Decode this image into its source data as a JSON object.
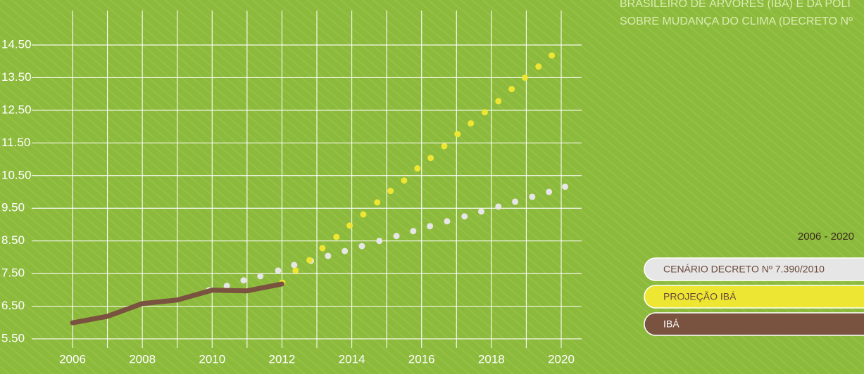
{
  "chart_data": {
    "type": "line",
    "heading_lines": [
      "BRASILEIRO DE ÁRVORES (IBÁ) E DA POLÍ",
      "SOBRE MUDANÇA DO CLIMA (DECRETO Nº"
    ],
    "legend_title": "2006 - 2020",
    "legend": "right",
    "grid": true,
    "xlim": [
      2006,
      2020
    ],
    "xticks": [
      2006,
      2008,
      2010,
      2012,
      2014,
      2016,
      2018,
      2020
    ],
    "xminorticks": [
      2007,
      2009,
      2011,
      2013,
      2015,
      2017,
      2019
    ],
    "ylim": [
      5.5,
      14.5
    ],
    "yticks": [
      {
        "value": 5.5,
        "label": "5.50"
      },
      {
        "value": 6.5,
        "label": "6.50"
      },
      {
        "value": 7.5,
        "label": "7.50"
      },
      {
        "value": 8.5,
        "label": "8.50"
      },
      {
        "value": 9.5,
        "label": "9.50"
      },
      {
        "value": 10.5,
        "label": "10.50"
      },
      {
        "value": 11.5,
        "label": "11.50"
      },
      {
        "value": 12.5,
        "label": "12.50"
      },
      {
        "value": 13.5,
        "label": "13.50"
      },
      {
        "value": 14.5,
        "label": "14.50"
      }
    ],
    "series": [
      {
        "name": "CENÁRIO DECRETO Nº 7.390/2010",
        "color": "#e6e6e6",
        "text_color": "#6b4a3c",
        "mode": "dots",
        "x": [
          2009.91,
          2010.42,
          2010.9,
          2011.38,
          2011.89,
          2012.35,
          2012.83,
          2013.32,
          2013.8,
          2014.29,
          2014.79,
          2015.28,
          2015.76,
          2016.24,
          2016.73,
          2017.23,
          2017.71,
          2018.2,
          2018.68,
          2019.17,
          2019.65,
          2020.11
        ],
        "values": [
          6.99,
          7.12,
          7.29,
          7.42,
          7.59,
          7.76,
          7.89,
          8.04,
          8.19,
          8.34,
          8.5,
          8.65,
          8.8,
          8.95,
          9.1,
          9.25,
          9.4,
          9.55,
          9.7,
          9.85,
          10.0,
          10.16
        ]
      },
      {
        "name": "PROJEÇÃO IBÁ",
        "color": "#ede632",
        "text_color": "#6b4a3c",
        "mode": "dots",
        "x": [
          2012.01,
          2012.39,
          2012.79,
          2013.16,
          2013.56,
          2013.94,
          2014.33,
          2014.73,
          2015.11,
          2015.5,
          2015.88,
          2016.26,
          2016.65,
          2017.03,
          2017.41,
          2017.81,
          2018.2,
          2018.58,
          2018.96,
          2019.35,
          2019.73
        ],
        "values": [
          7.22,
          7.59,
          7.91,
          8.28,
          8.62,
          8.97,
          9.31,
          9.68,
          10.03,
          10.35,
          10.72,
          11.04,
          11.4,
          11.77,
          12.1,
          12.44,
          12.78,
          13.15,
          13.5,
          13.84,
          14.18
        ]
      },
      {
        "name": "IBÁ",
        "color": "#7a5240",
        "text_color": "#ffffff",
        "mode": "line",
        "x": [
          2006,
          2007,
          2008,
          2009,
          2010,
          2011,
          2012
        ],
        "values": [
          5.99,
          6.19,
          6.58,
          6.69,
          6.99,
          6.97,
          7.18
        ]
      }
    ]
  }
}
